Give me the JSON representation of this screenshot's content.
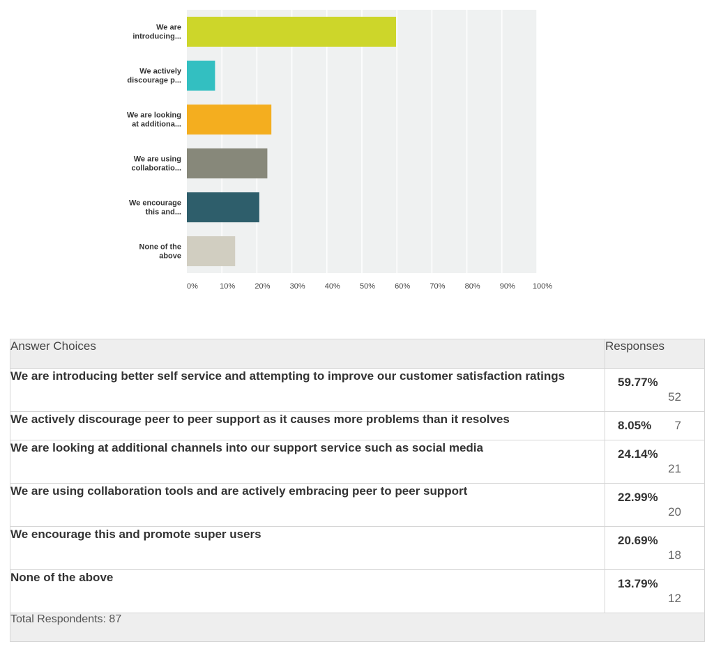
{
  "chart_data": {
    "type": "bar",
    "orientation": "horizontal",
    "categories": [
      [
        "We are",
        "introducing..."
      ],
      [
        "We actively",
        "discourage p..."
      ],
      [
        "We are looking",
        "at additiona..."
      ],
      [
        "We are using",
        "collaboratio..."
      ],
      [
        "We encourage",
        "this and..."
      ],
      [
        "None of the",
        "above"
      ]
    ],
    "values": [
      59.77,
      8.05,
      24.14,
      22.99,
      20.69,
      13.79
    ],
    "colors": [
      "#cdd62a",
      "#33bfc1",
      "#f4ae1f",
      "#87887a",
      "#2e5e6b",
      "#d1cec1"
    ],
    "xticks": [
      "0%",
      "10%",
      "20%",
      "30%",
      "40%",
      "50%",
      "60%",
      "70%",
      "80%",
      "90%",
      "100%"
    ],
    "xlim": [
      0,
      100
    ],
    "grid": true
  },
  "table": {
    "header_choices": "Answer Choices",
    "header_responses": "Responses",
    "rows": [
      {
        "choice": "We are introducing better self service and attempting to improve our customer satisfaction ratings",
        "pct": "59.77%",
        "count": "52"
      },
      {
        "choice": "We actively discourage peer to peer support as it causes more problems than it resolves",
        "pct": "8.05%",
        "count": "7"
      },
      {
        "choice": "We are looking at additional channels into our support service such as social media",
        "pct": "24.14%",
        "count": "21"
      },
      {
        "choice": "We are using collaboration tools and are actively embracing peer to peer support",
        "pct": "22.99%",
        "count": "20"
      },
      {
        "choice": "We encourage this and promote super users",
        "pct": "20.69%",
        "count": "18"
      },
      {
        "choice": "None of the above",
        "pct": "13.79%",
        "count": "12"
      }
    ],
    "total": "Total Respondents: 87"
  }
}
